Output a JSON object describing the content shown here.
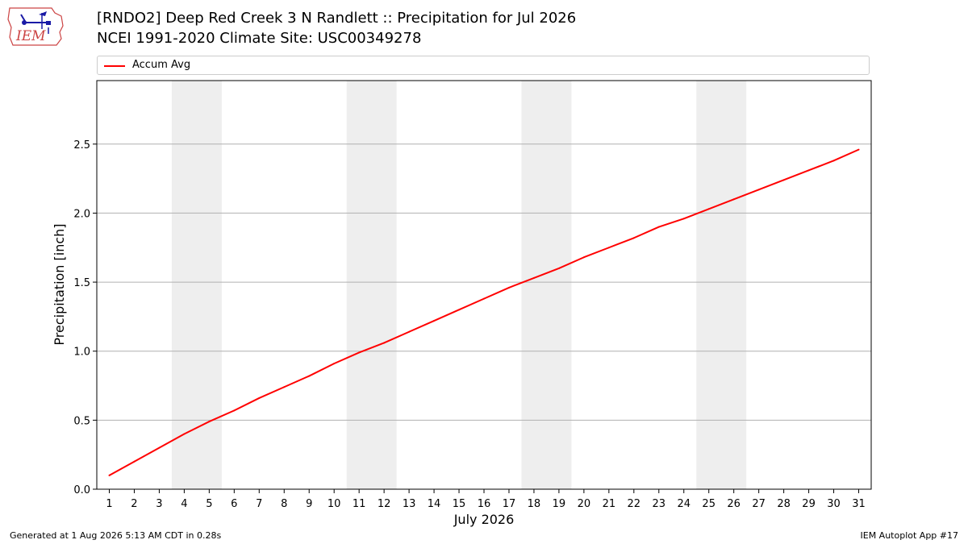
{
  "header": {
    "title": "[RNDO2] Deep Red Creek 3 N Randlett :: Precipitation for Jul 2026",
    "subtitle": "NCEI 1991-2020 Climate Site: USC00349278",
    "logo_text": "IEM"
  },
  "footer": {
    "generated": "Generated at 1 Aug 2026 5:13 AM CDT in 0.28s",
    "app": "IEM Autoplot App #17"
  },
  "colors": {
    "series": "#ff0000",
    "weekend_band": "#eeeeee",
    "grid": "#b0b0b0"
  },
  "chart_data": {
    "type": "line",
    "xlabel": "July 2026",
    "ylabel": "Precipitation [inch]",
    "xlim": [
      0.5,
      31.5
    ],
    "ylim": [
      0,
      2.96
    ],
    "yticks": [
      0.0,
      0.5,
      1.0,
      1.5,
      2.0,
      2.5
    ],
    "ytick_labels": [
      "0.0",
      "0.5",
      "1.0",
      "1.5",
      "2.0",
      "2.5"
    ],
    "x": [
      1,
      2,
      3,
      4,
      5,
      6,
      7,
      8,
      9,
      10,
      11,
      12,
      13,
      14,
      15,
      16,
      17,
      18,
      19,
      20,
      21,
      22,
      23,
      24,
      25,
      26,
      27,
      28,
      29,
      30,
      31
    ],
    "grid": "horizontal",
    "legend_placement": "top",
    "weekend_bands": [
      [
        3.5,
        5.5
      ],
      [
        10.5,
        12.5
      ],
      [
        17.5,
        19.5
      ],
      [
        24.5,
        26.5
      ]
    ],
    "series": [
      {
        "name": "Accum Avg",
        "values": [
          0.1,
          0.2,
          0.3,
          0.4,
          0.49,
          0.57,
          0.66,
          0.74,
          0.82,
          0.91,
          0.99,
          1.06,
          1.14,
          1.22,
          1.3,
          1.38,
          1.46,
          1.53,
          1.6,
          1.68,
          1.75,
          1.82,
          1.9,
          1.96,
          2.03,
          2.1,
          2.17,
          2.24,
          2.31,
          2.38,
          2.46
        ]
      }
    ]
  }
}
